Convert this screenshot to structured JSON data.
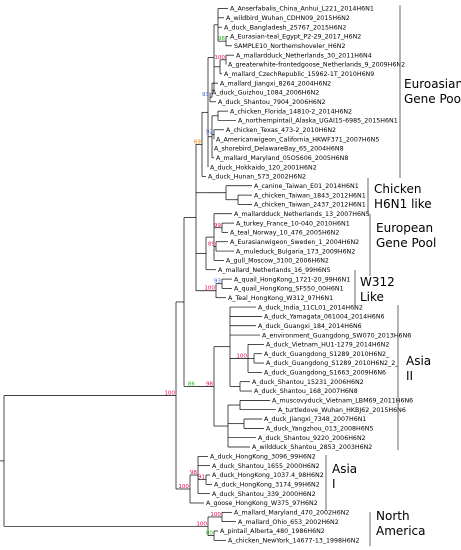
{
  "colors": {
    "default": "#000000",
    "blue": "#3a3ad0",
    "red": "#e32020",
    "green": "#2a9d2a",
    "orange": "#d6820a",
    "boot_red": "#c0205a",
    "boot_green": "#3aa83a",
    "boot_blue": "#4060c0"
  },
  "taxa": [
    {
      "id": 1,
      "label": "A_Anserfabalis_China_Anhui_L221_2014H6N1",
      "color": "default"
    },
    {
      "id": 2,
      "label": "A_wildbird_Wuhan_CDHN09_2015H6N2",
      "color": "default"
    },
    {
      "id": 3,
      "label": "A_duck_Bangladesh_25767_2015H6N2",
      "color": "default"
    },
    {
      "id": 4,
      "label": "A_Eurasian-teal_Egypt_P2-29_2017_H6N2",
      "color": "blue"
    },
    {
      "id": 5,
      "label": "SAMPLE10_Northemshoveler_H6N2",
      "color": "red"
    },
    {
      "id": 6,
      "label": "A_mallardduck_Netherlands_30_2011H6N4",
      "color": "default"
    },
    {
      "id": 7,
      "label": "A_greaterwhite-frontedgoose_Netherlands_9_2009H6N2",
      "color": "default"
    },
    {
      "id": 8,
      "label": "A_mallard_CzechRepublic_15962-1T_2010H6N9",
      "color": "default"
    },
    {
      "id": 9,
      "label": "A_mallard_Jiangxi_8264_2004H6N2",
      "color": "default"
    },
    {
      "id": 10,
      "label": "A_duck_Guizhou_1084_2006H6N2",
      "color": "default"
    },
    {
      "id": 11,
      "label": "A_duck_Shantou_7904_2006H6N2",
      "color": "default"
    },
    {
      "id": 12,
      "label": "A_chicken_Florida_14810-2_2014H6N2",
      "color": "default"
    },
    {
      "id": 13,
      "label": "A_northernpintail_Alaska_UGAI15-6985_2015H6N1",
      "color": "default"
    },
    {
      "id": 14,
      "label": "A_chicken_Texas_473-2_2010H6N2",
      "color": "default"
    },
    {
      "id": 15,
      "label": "A_Americanwigeon_California_HKWF371_2007H6N5",
      "color": "default"
    },
    {
      "id": 16,
      "label": "A_shorebird_DelawareBay_65_2004H6N8",
      "color": "default"
    },
    {
      "id": 17,
      "label": "A_mallard_Maryland_05OS606_2005H6N8",
      "color": "default"
    },
    {
      "id": 18,
      "label": "A_duck_Hokkaido_120_2001H6N2",
      "color": "default"
    },
    {
      "id": 19,
      "label": "A_duck_Hunan_573_2002H6N2",
      "color": "default"
    },
    {
      "id": 20,
      "label": "A_canine_Taiwan_E01_2014H6N1",
      "color": "default"
    },
    {
      "id": 21,
      "label": "A_chicken_Taiwan_1843_2012H6N1",
      "color": "default"
    },
    {
      "id": 22,
      "label": "A_chicken_Taiwan_2437_2012H6N1",
      "color": "default"
    },
    {
      "id": 23,
      "label": "A_mallardduck_Netherlands_13_2007H6N5",
      "color": "default"
    },
    {
      "id": 24,
      "label": "A_turkey_France_10-040_2010H6N1",
      "color": "default"
    },
    {
      "id": 25,
      "label": "A_teal_Norway_10_476_2005H6N2",
      "color": "default"
    },
    {
      "id": 26,
      "label": "A_Eurasianwigeon_Sweden_1_2004H6N2",
      "color": "default"
    },
    {
      "id": 27,
      "label": "A_muleduck_Bulgaria_173_2009H6N2",
      "color": "default"
    },
    {
      "id": 28,
      "label": "A_gull_Moscow_3100_2006H6N2",
      "color": "default"
    },
    {
      "id": 29,
      "label": "A_mallard_Netherlands_16_99H6N5",
      "color": "default"
    },
    {
      "id": 30,
      "label": "A_quail_HongKong_1721-20_99H6N1",
      "color": "default"
    },
    {
      "id": 31,
      "label": "A_quail_HongKong_SF550_00H6N1",
      "color": "default"
    },
    {
      "id": 32,
      "label": "A_Teal_HongKong_W312_97H6N1",
      "color": "default"
    },
    {
      "id": 33,
      "label": "A_duck_India_11CL01_2014H6N2",
      "color": "default"
    },
    {
      "id": 34,
      "label": "A_duck_Yamagata_061004_2014H6N6",
      "color": "default"
    },
    {
      "id": 35,
      "label": "A_duck_Guangxi_184_2014H6N6",
      "color": "default"
    },
    {
      "id": 36,
      "label": "A_environment_Guangdong_SW070_2013H6N6",
      "color": "default"
    },
    {
      "id": 37,
      "label": "A_duck_Vietnam_HU1-1279_2014H6N2",
      "color": "default"
    },
    {
      "id": 38,
      "label": "A_duck_Guangdong_S1289_2010H6N2_",
      "color": "default"
    },
    {
      "id": 39,
      "label": "A_duck_Guangdong_S1289_2010H6N2_2_",
      "color": "default"
    },
    {
      "id": 40,
      "label": "A_duck_Guangdong_S1663_2009H6N6",
      "color": "default"
    },
    {
      "id": 41,
      "label": "A_duck_Shantou_15231_2006H6N2",
      "color": "default"
    },
    {
      "id": 42,
      "label": "A_duck_Shantou_168_2007H6N8",
      "color": "default"
    },
    {
      "id": 43,
      "label": "A_muscovyduck_Vietnam_LBM69_2011H6N6",
      "color": "default"
    },
    {
      "id": 44,
      "label": "A_turtledove_Wuhan_HKBJ62_2015H6N6",
      "color": "default"
    },
    {
      "id": 45,
      "label": "A_duck_Jiangxi_7348_2007H6N1",
      "color": "default"
    },
    {
      "id": 46,
      "label": "A_duck_Yangzhou_013_2008H6N5",
      "color": "default"
    },
    {
      "id": 47,
      "label": "A_duck_Shantou_9220_2006H6N2",
      "color": "default"
    },
    {
      "id": 48,
      "label": "A_wildduck_Shantou_2853_2003H6N2",
      "color": "default"
    },
    {
      "id": 49,
      "label": "A_duck_HongKong_3096_99H6N2",
      "color": "default"
    },
    {
      "id": 50,
      "label": "A_duck_Shantou_1655_2000H6N2",
      "color": "default"
    },
    {
      "id": 51,
      "label": "A_duck_HongKong_1037.4_98H6N2",
      "color": "default"
    },
    {
      "id": 52,
      "label": "A_duck_HongKong_3174_99H6N2",
      "color": "default"
    },
    {
      "id": 53,
      "label": "A_duck_Shantou_339_2000H6N2",
      "color": "default"
    },
    {
      "id": 54,
      "label": "A_goose_HongKong_W375_97H6N2",
      "color": "default"
    },
    {
      "id": 55,
      "label": "A_mallard_Maryland_470_2002H6N2",
      "color": "default"
    },
    {
      "id": 56,
      "label": "A_mallard_Ohio_653_2002H6N2",
      "color": "default"
    },
    {
      "id": 57,
      "label": "A_pintail_Alberta_480_1986H6N2",
      "color": "default"
    },
    {
      "id": 58,
      "label": "A_chicken_NewYork_14677-13_1998H6N2",
      "color": "default"
    }
  ],
  "bootstrap": [
    {
      "id": "b_egypt",
      "value": "98",
      "color": "boot_green"
    },
    {
      "id": "b_euro",
      "value": "100",
      "color": "boot_red"
    },
    {
      "id": "b_guizhou",
      "value": "93",
      "color": "boot_blue"
    },
    {
      "id": "b_america",
      "value": "92",
      "color": "boot_blue"
    },
    {
      "id": "b_hunan",
      "value": "69",
      "color": "orange"
    },
    {
      "id": "b_eugp",
      "value": "99",
      "color": "boot_red"
    },
    {
      "id": "b_bulg",
      "value": "89",
      "color": "boot_red"
    },
    {
      "id": "b_w312",
      "value": "93",
      "color": "boot_blue"
    },
    {
      "id": "b_w312b",
      "value": "100",
      "color": "boot_red"
    },
    {
      "id": "b_vietnam",
      "value": "100",
      "color": "boot_red"
    },
    {
      "id": "b_asia2",
      "value": "98",
      "color": "boot_red"
    },
    {
      "id": "b_main",
      "value": "86",
      "color": "boot_green"
    },
    {
      "id": "b_root",
      "value": "100",
      "color": "boot_red"
    },
    {
      "id": "b_hk1",
      "value": "91",
      "color": "boot_red"
    },
    {
      "id": "b_hk2",
      "value": "98",
      "color": "boot_red"
    },
    {
      "id": "b_asia1",
      "value": "100",
      "color": "boot_red"
    },
    {
      "id": "b_na1",
      "value": "100",
      "color": "boot_red"
    },
    {
      "id": "b_na2",
      "value": "80",
      "color": "boot_green"
    },
    {
      "id": "b_na3",
      "value": "100",
      "color": "boot_red"
    }
  ],
  "groups": [
    {
      "id": "euroasian",
      "lines": [
        "Euroasian",
        "Gene Pool"
      ]
    },
    {
      "id": "chicken",
      "lines": [
        "Chicken",
        "H6N1 like"
      ]
    },
    {
      "id": "european",
      "lines": [
        "European",
        "Gene Pool"
      ]
    },
    {
      "id": "w312",
      "lines": [
        "W312",
        "Like"
      ]
    },
    {
      "id": "asia2",
      "lines": [
        "Asia",
        "II"
      ]
    },
    {
      "id": "asia1",
      "lines": [
        "Asia",
        "I"
      ]
    },
    {
      "id": "northamerica",
      "lines": [
        "North",
        "America"
      ]
    }
  ]
}
